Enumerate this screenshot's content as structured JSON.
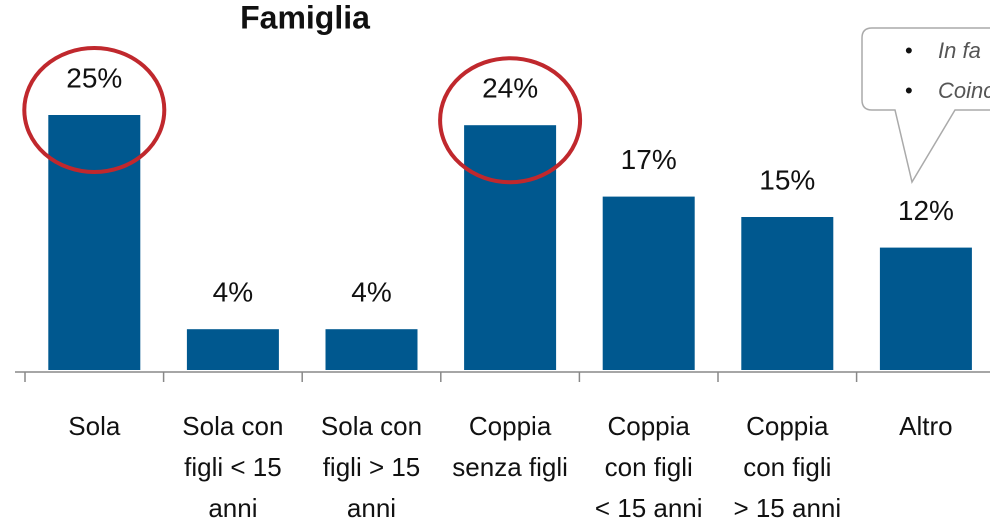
{
  "chart_data": {
    "type": "bar",
    "title": "Famiglia",
    "categories": [
      "Sola",
      "Sola con\nfigli < 15\nanni",
      "Sola con\nfigli > 15\nanni",
      "Coppia\nsenza figli",
      "Coppia\ncon figli\n< 15 anni",
      "Coppia\ncon figli\n> 15 anni",
      "Altro"
    ],
    "values": [
      25,
      4,
      4,
      24,
      17,
      15,
      12
    ],
    "value_labels": [
      "25%",
      "4%",
      "4%",
      "24%",
      "17%",
      "15%",
      "12%"
    ],
    "color": "#00588f",
    "ylim": [
      0,
      25
    ],
    "highlight": [
      0,
      3
    ],
    "highlight_color": "#c0282d",
    "annotations": [
      "In fa",
      "Coinc"
    ]
  }
}
